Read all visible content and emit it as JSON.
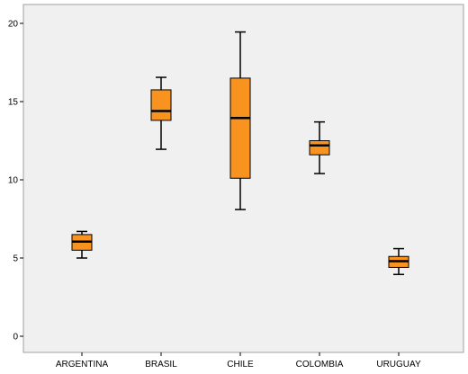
{
  "chart_data": {
    "type": "boxplot",
    "title": "",
    "xlabel": "",
    "ylabel": "",
    "ylim": [
      -1,
      21
    ],
    "yticks": [
      0,
      5,
      10,
      15,
      20
    ],
    "ytick_labels": [
      "0",
      "5",
      "10",
      "15",
      "20"
    ],
    "grid": false,
    "categories": [
      "ARGENTINA",
      "BRASIL",
      "CHILE",
      "COLOMBIA",
      "URUGUAY"
    ],
    "boxes": [
      {
        "min": 5.0,
        "q1": 5.5,
        "median": 6.05,
        "q3": 6.5,
        "max": 6.7
      },
      {
        "min": 11.95,
        "q1": 13.8,
        "median": 14.4,
        "q3": 15.75,
        "max": 16.55
      },
      {
        "min": 8.1,
        "q1": 10.1,
        "median": 13.95,
        "q3": 16.5,
        "max": 19.45
      },
      {
        "min": 10.4,
        "q1": 11.6,
        "median": 12.2,
        "q3": 12.5,
        "max": 13.7
      },
      {
        "min": 3.95,
        "q1": 4.4,
        "median": 4.8,
        "q3": 5.1,
        "max": 5.6
      }
    ],
    "colors": {
      "box_fill": "#f7931e",
      "box_stroke": "#000000",
      "plot_bg": "#f0f0f0",
      "frame": "#a0a0a0"
    }
  }
}
